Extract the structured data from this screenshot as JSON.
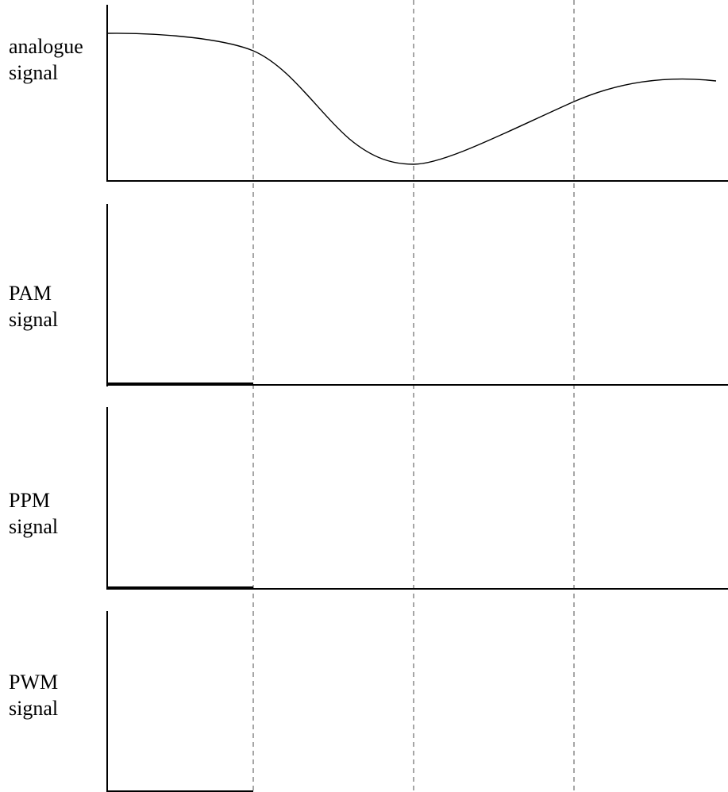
{
  "panels": [
    {
      "id": "analogue",
      "line1": "analogue",
      "line2": "signal"
    },
    {
      "id": "pam",
      "line1": "PAM",
      "line2": "signal"
    },
    {
      "id": "ppm",
      "line1": "PPM",
      "line2": "signal"
    },
    {
      "id": "pwm",
      "line1": "PWM",
      "line2": "signal"
    }
  ],
  "colors": {
    "axis": "#000000",
    "curve": "#000000",
    "guide": "#777777",
    "background": "#ffffff"
  }
}
